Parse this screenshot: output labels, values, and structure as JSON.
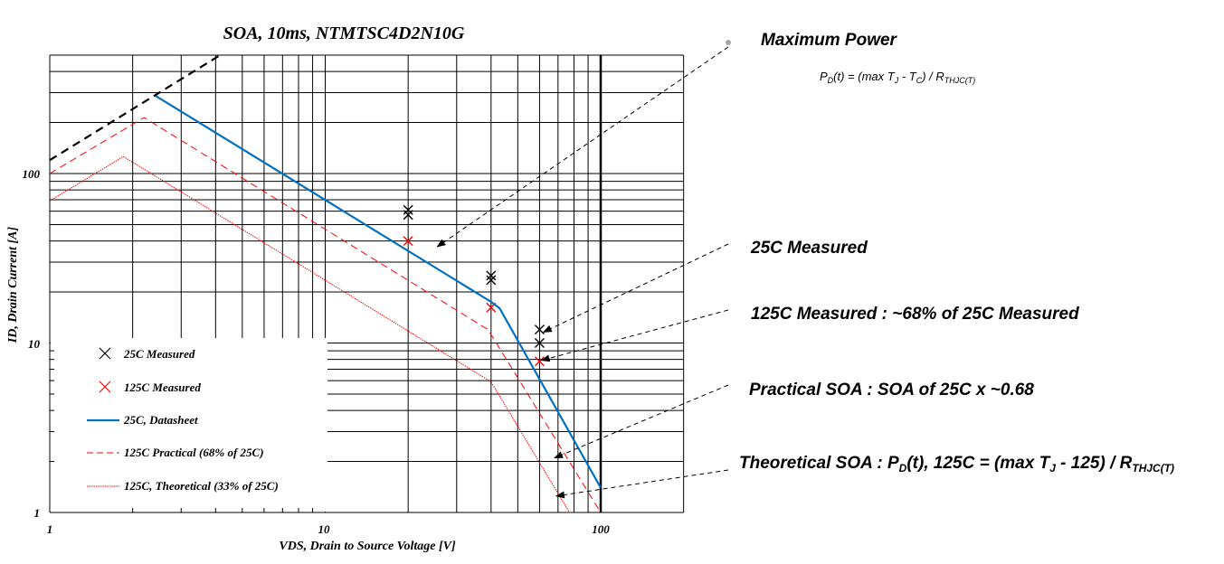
{
  "chart_data": {
    "type": "line",
    "title": "SOA, 10ms, NTMTSC4D2N10G",
    "xlabel": "VDS, Drain to Source Voltage [V]",
    "ylabel": "ID, Drain Current  [A]",
    "xscale": "log",
    "yscale": "log",
    "xlim": [
      1,
      200
    ],
    "ylim": [
      1,
      500
    ],
    "x_tick_labels": [
      "1",
      "10",
      "100"
    ],
    "y_tick_labels": [
      "1",
      "10",
      "100"
    ],
    "grid": true,
    "legend_placement": "bottom-left",
    "series": [
      {
        "name": "25C Measured",
        "kind": "marker",
        "color": "#000000",
        "points": [
          [
            20,
            61
          ],
          [
            20,
            57
          ],
          [
            40,
            25
          ],
          [
            40,
            23.5
          ],
          [
            60,
            12
          ],
          [
            60,
            10
          ]
        ]
      },
      {
        "name": "125C Measured",
        "kind": "marker",
        "color": "#ff0000",
        "points": [
          [
            20,
            40
          ],
          [
            40,
            16.2
          ],
          [
            60,
            7.8
          ]
        ]
      },
      {
        "name": "25C, Datasheet",
        "kind": "line",
        "style": "solid",
        "color": "#0070c0",
        "points": [
          [
            2.4,
            290
          ],
          [
            40,
            17.5
          ],
          [
            43,
            16
          ],
          [
            100,
            1.4
          ]
        ]
      },
      {
        "name": "125C Practical (68% of 25C)",
        "kind": "line",
        "style": "dashed",
        "color": "#ff0000",
        "points": [
          [
            1,
            100
          ],
          [
            2.2,
            214
          ],
          [
            39,
            12
          ],
          [
            100,
            1
          ]
        ]
      },
      {
        "name": "125C, Theoretical (33% of 25C)",
        "kind": "line",
        "style": "dotted",
        "color": "#ff0000",
        "points": [
          [
            1,
            69
          ],
          [
            1.85,
            126
          ],
          [
            40,
            5.9
          ],
          [
            77,
            1
          ]
        ]
      },
      {
        "name": "",
        "kind": "line",
        "style": "dashed-bold",
        "color": "#000000",
        "points": [
          [
            1,
            120
          ],
          [
            4.1,
            493
          ]
        ]
      }
    ]
  },
  "annotations": [
    {
      "id": "maximum-power",
      "parts": [
        {
          "t": "Maximum Power"
        }
      ],
      "target": [
        25.5,
        37
      ]
    },
    {
      "id": "25c-measured",
      "parts": [
        {
          "t": "25C Measured"
        }
      ],
      "target": [
        62,
        11.6
      ]
    },
    {
      "id": "125c-measured",
      "parts": [
        {
          "t": "125C Measured : ~68% of 25C Measured"
        }
      ],
      "target": [
        61,
        7.9
      ]
    },
    {
      "id": "practical-soa",
      "parts": [
        {
          "t": "Practical SOA : SOA of 25C x ~0.68"
        }
      ],
      "target": [
        68,
        2.1
      ]
    },
    {
      "id": "theoretical-soa",
      "parts": [
        {
          "t": "Theoretical SOA : P"
        },
        {
          "t": "D",
          "sub": true
        },
        {
          "t": "(t), 125C = (max T"
        },
        {
          "t": "J",
          "sub": true
        },
        {
          "t": " - 125) / R"
        },
        {
          "t": "THJC(T)",
          "sub": true
        }
      ],
      "target": [
        69,
        1.25
      ]
    }
  ],
  "formula": {
    "parts": [
      {
        "t": "P"
      },
      {
        "t": "D",
        "sub": true
      },
      {
        "t": "(t) = (max T"
      },
      {
        "t": "J",
        "sub": true
      },
      {
        "t": " - T"
      },
      {
        "t": "C",
        "sub": true
      },
      {
        "t": ") / R"
      },
      {
        "t": "THJC(T)",
        "sub": true
      }
    ]
  },
  "colors": {
    "blue": "#0070c0",
    "red": "#ff0000",
    "grid": "#000000",
    "annotation_dot": "#a6a6a6"
  }
}
